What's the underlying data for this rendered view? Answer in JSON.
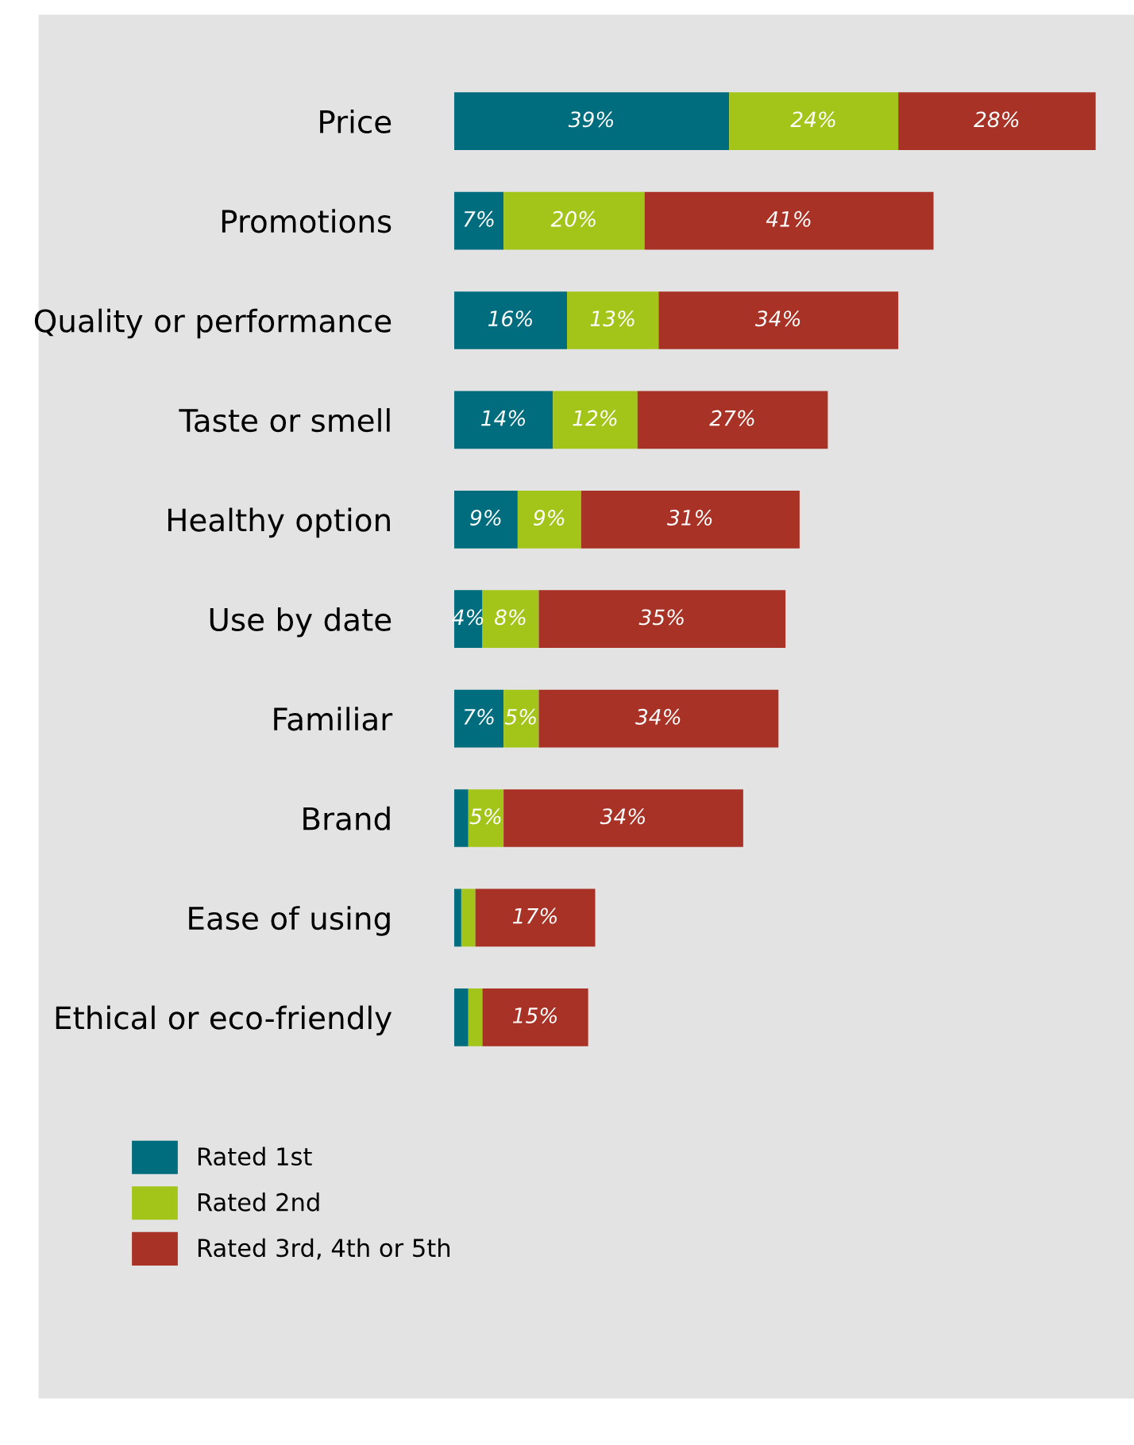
{
  "chart_data": {
    "type": "bar",
    "orientation": "horizontal",
    "stacked": true,
    "categories": [
      "Price",
      "Promotions",
      "Quality or performance",
      "Taste or smell",
      "Healthy option",
      "Use by date",
      "Familiar",
      "Brand",
      "Ease of using",
      "Ethical or eco-friendly"
    ],
    "series": [
      {
        "name": "Rated 1st",
        "color": "#006d7e",
        "values": [
          39,
          7,
          16,
          14,
          9,
          4,
          7,
          2,
          1,
          2
        ],
        "value_labels": [
          "39%",
          "7%",
          "16%",
          "14%",
          "9%",
          "4%",
          "7%",
          null,
          null,
          null
        ]
      },
      {
        "name": "Rated 2nd",
        "color": "#a3c51a",
        "values": [
          24,
          20,
          13,
          12,
          9,
          8,
          5,
          5,
          2,
          2
        ],
        "value_labels": [
          "24%",
          "20%",
          "13%",
          "12%",
          "9%",
          "8%",
          "5%",
          "5%",
          null,
          null
        ]
      },
      {
        "name": "Rated 3rd, 4th or 5th",
        "color": "#a93226",
        "values": [
          28,
          41,
          34,
          27,
          31,
          35,
          34,
          34,
          17,
          15
        ],
        "value_labels": [
          "28%",
          "41%",
          "34%",
          "27%",
          "31%",
          "35%",
          "34%",
          "34%",
          "17%",
          "15%"
        ]
      }
    ],
    "legend": "bottom left",
    "grid": false
  }
}
